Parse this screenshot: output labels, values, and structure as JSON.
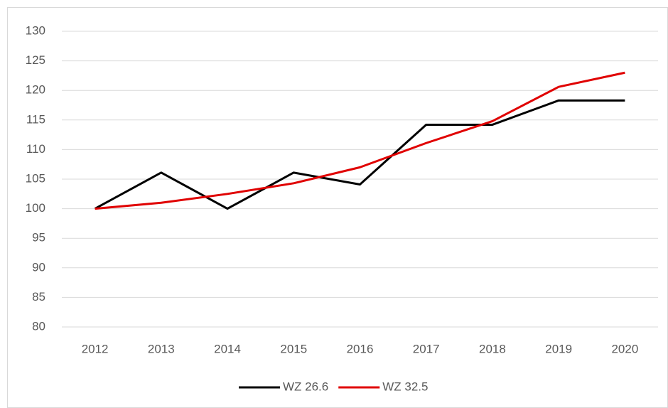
{
  "chart_data": {
    "type": "line",
    "categories": [
      "2012",
      "2013",
      "2014",
      "2015",
      "2016",
      "2017",
      "2018",
      "2019",
      "2020"
    ],
    "series": [
      {
        "name": "WZ 26.6",
        "color": "#000000",
        "values": [
          100,
          106.1,
          100,
          106.1,
          104.1,
          114.2,
          114.2,
          118.3,
          118.3
        ]
      },
      {
        "name": "WZ 32.5",
        "color": "#e00000",
        "values": [
          100,
          101,
          102.5,
          104.3,
          107,
          111.1,
          114.8,
          120.6,
          123
        ]
      }
    ],
    "ylim": [
      80,
      130
    ],
    "yticks": [
      80,
      85,
      90,
      95,
      100,
      105,
      110,
      115,
      120,
      125,
      130
    ],
    "grid": true,
    "legend": "bottom"
  }
}
